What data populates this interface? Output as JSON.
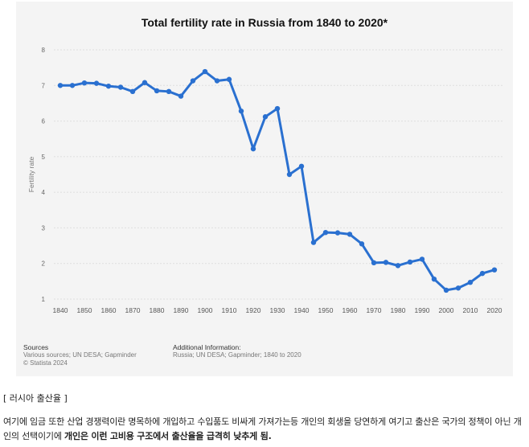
{
  "chart_data": {
    "type": "line",
    "title": "Total fertility rate in Russia from 1840 to 2020*",
    "ylabel": "Fertility rate",
    "xlabel": "",
    "ylim": [
      1,
      8
    ],
    "yticks": [
      1,
      2,
      3,
      4,
      5,
      6,
      7,
      8
    ],
    "xticks": [
      1840,
      1850,
      1860,
      1870,
      1880,
      1890,
      1900,
      1910,
      1920,
      1930,
      1940,
      1950,
      1960,
      1970,
      1980,
      1990,
      2000,
      2010,
      2020
    ],
    "grid": true,
    "color": "#2a70d0",
    "x": [
      1840,
      1845,
      1850,
      1855,
      1860,
      1865,
      1870,
      1875,
      1880,
      1885,
      1890,
      1895,
      1900,
      1905,
      1910,
      1915,
      1920,
      1925,
      1930,
      1935,
      1940,
      1945,
      1950,
      1955,
      1960,
      1965,
      1970,
      1975,
      1980,
      1985,
      1990,
      1995,
      2000,
      2005,
      2010,
      2015,
      2020
    ],
    "values": [
      7.0,
      7.0,
      7.07,
      7.06,
      6.98,
      6.95,
      6.83,
      7.08,
      6.85,
      6.83,
      6.7,
      7.13,
      7.39,
      7.13,
      7.17,
      6.28,
      5.22,
      6.12,
      6.35,
      4.5,
      4.73,
      2.59,
      2.87,
      2.86,
      2.82,
      2.55,
      2.02,
      2.03,
      1.94,
      2.04,
      2.12,
      1.56,
      1.25,
      1.31,
      1.47,
      1.72,
      1.82
    ]
  },
  "sources": {
    "heading": "Sources",
    "line1": "Various sources; UN DESA; Gapminder",
    "line2": "© Statista 2024"
  },
  "additional_info": {
    "heading": "Additional Information:",
    "line1": "Russia; UN DESA; Gapminder; 1840 to 2020"
  },
  "caption": "[ 러시아 출산율 ]",
  "paragraph": {
    "part1": "여기에 임금 또한 산업 경쟁력이란 명목하에 개입하고 수입품도 비싸게 가져가는등 개인의 회생을 당연하게 여기고 출산은 국가의 정책이 아닌 개인의 선택이기에 ",
    "bold": "개인은 이런 고비용 구조에서 출산율을 급격히 낮추게 됨."
  }
}
